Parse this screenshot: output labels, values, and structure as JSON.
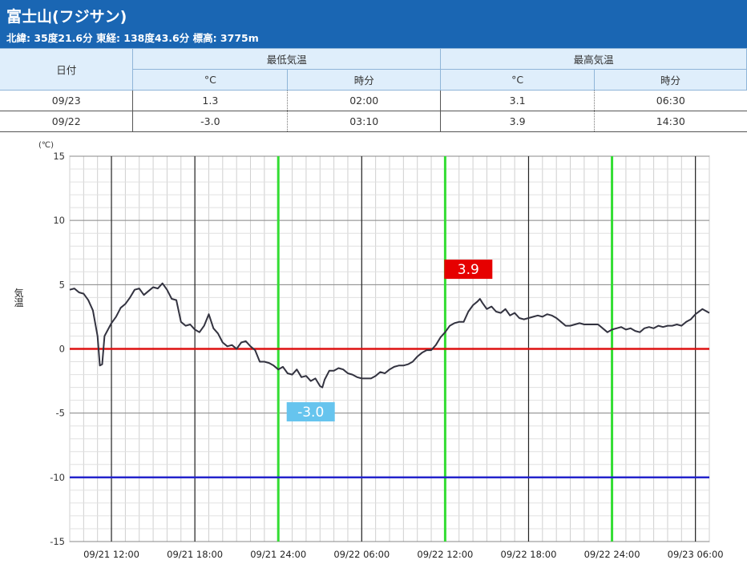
{
  "header": {
    "title": "富士山(フジサン)",
    "subtitle": "北緯: 35度21.6分 東経: 138度43.6分 標高: 3775m",
    "color": "#1a66b3"
  },
  "table": {
    "col_date": "日付",
    "group_min": "最低気温",
    "group_max": "最高気温",
    "unit_c": "°C",
    "unit_time": "時分",
    "rows": [
      {
        "date": "09/23",
        "min": "1.3",
        "min_time": "02:00",
        "max": "3.1",
        "max_time": "06:30"
      },
      {
        "date": "09/22",
        "min": "-3.0",
        "min_time": "03:10",
        "max": "3.9",
        "max_time": "14:30"
      }
    ]
  },
  "chart_data": {
    "type": "line",
    "ylabel": "気温",
    "yunit": "(℃)",
    "ylim": [
      -15,
      15
    ],
    "yticks": [
      15,
      10,
      5,
      0,
      -5,
      -10,
      -15
    ],
    "x_range": [
      "2025-09-21 09:00",
      "2025-09-23 07:00"
    ],
    "x_ticks": [
      "09/21 12:00",
      "09/21 18:00",
      "09/21 24:00",
      "09/22 06:00",
      "09/22 12:00",
      "09/22 18:00",
      "09/22 24:00",
      "09/23 06:00"
    ],
    "grid": true,
    "reference_lines": [
      {
        "y": 0,
        "color": "#dd1111"
      },
      {
        "y": -10,
        "color": "#2222cc"
      }
    ],
    "day_markers": [
      "09/21 24:00",
      "09/22 12:00",
      "09/22 24:00"
    ],
    "day_marker_color": "#33dd33",
    "annotations": [
      {
        "text": "3.9",
        "x": "09/22 13:40",
        "y": 6.2,
        "bg": "#e60000",
        "color": "#ffffff"
      },
      {
        "text": "-3.0",
        "x": "09/22 02:20",
        "y": -4.9,
        "bg": "#66c4ee",
        "color": "#ffffff"
      }
    ],
    "series": [
      {
        "color": "#333340",
        "points": [
          [
            "09/21 09:00",
            4.6
          ],
          [
            "09/21 09:20",
            4.7
          ],
          [
            "09/21 09:40",
            4.4
          ],
          [
            "09/21 10:00",
            4.3
          ],
          [
            "09/21 10:20",
            3.8
          ],
          [
            "09/21 10:40",
            3.0
          ],
          [
            "09/21 11:00",
            1.0
          ],
          [
            "09/21 11:10",
            -1.3
          ],
          [
            "09/21 11:20",
            -1.2
          ],
          [
            "09/21 11:30",
            1.0
          ],
          [
            "09/21 12:00",
            2.0
          ],
          [
            "09/21 12:20",
            2.5
          ],
          [
            "09/21 12:40",
            3.2
          ],
          [
            "09/21 13:00",
            3.5
          ],
          [
            "09/21 13:20",
            4.0
          ],
          [
            "09/21 13:40",
            4.6
          ],
          [
            "09/21 14:00",
            4.7
          ],
          [
            "09/21 14:20",
            4.2
          ],
          [
            "09/21 14:40",
            4.5
          ],
          [
            "09/21 15:00",
            4.8
          ],
          [
            "09/21 15:20",
            4.7
          ],
          [
            "09/21 15:40",
            5.1
          ],
          [
            "09/21 16:00",
            4.6
          ],
          [
            "09/21 16:20",
            3.9
          ],
          [
            "09/21 16:40",
            3.8
          ],
          [
            "09/21 17:00",
            2.1
          ],
          [
            "09/21 17:20",
            1.8
          ],
          [
            "09/21 17:40",
            1.9
          ],
          [
            "09/21 18:00",
            1.5
          ],
          [
            "09/21 18:20",
            1.3
          ],
          [
            "09/21 18:40",
            1.8
          ],
          [
            "09/21 19:00",
            2.7
          ],
          [
            "09/21 19:20",
            1.6
          ],
          [
            "09/21 19:40",
            1.2
          ],
          [
            "09/21 20:00",
            0.5
          ],
          [
            "09/21 20:20",
            0.2
          ],
          [
            "09/21 20:40",
            0.3
          ],
          [
            "09/21 21:00",
            0.0
          ],
          [
            "09/21 21:20",
            0.5
          ],
          [
            "09/21 21:40",
            0.6
          ],
          [
            "09/21 22:00",
            0.2
          ],
          [
            "09/21 22:20",
            -0.1
          ],
          [
            "09/21 22:40",
            -1.0
          ],
          [
            "09/21 23:00",
            -1.0
          ],
          [
            "09/21 23:20",
            -1.1
          ],
          [
            "09/21 23:40",
            -1.3
          ],
          [
            "09/22 00:00",
            -1.6
          ],
          [
            "09/22 00:20",
            -1.4
          ],
          [
            "09/22 00:40",
            -1.9
          ],
          [
            "09/22 01:00",
            -2.0
          ],
          [
            "09/22 01:20",
            -1.6
          ],
          [
            "09/22 01:40",
            -2.2
          ],
          [
            "09/22 02:00",
            -2.1
          ],
          [
            "09/22 02:20",
            -2.5
          ],
          [
            "09/22 02:40",
            -2.3
          ],
          [
            "09/22 03:00",
            -2.9
          ],
          [
            "09/22 03:10",
            -3.0
          ],
          [
            "09/22 03:20",
            -2.4
          ],
          [
            "09/22 03:40",
            -1.7
          ],
          [
            "09/22 04:00",
            -1.7
          ],
          [
            "09/22 04:20",
            -1.5
          ],
          [
            "09/22 04:40",
            -1.6
          ],
          [
            "09/22 05:00",
            -1.9
          ],
          [
            "09/22 05:20",
            -2.0
          ],
          [
            "09/22 05:40",
            -2.2
          ],
          [
            "09/22 06:00",
            -2.3
          ],
          [
            "09/22 06:20",
            -2.3
          ],
          [
            "09/22 06:40",
            -2.3
          ],
          [
            "09/22 07:00",
            -2.1
          ],
          [
            "09/22 07:20",
            -1.8
          ],
          [
            "09/22 07:40",
            -1.9
          ],
          [
            "09/22 08:00",
            -1.6
          ],
          [
            "09/22 08:20",
            -1.4
          ],
          [
            "09/22 08:40",
            -1.3
          ],
          [
            "09/22 09:00",
            -1.3
          ],
          [
            "09/22 09:20",
            -1.2
          ],
          [
            "09/22 09:40",
            -1.0
          ],
          [
            "09/22 10:00",
            -0.6
          ],
          [
            "09/22 10:20",
            -0.3
          ],
          [
            "09/22 10:40",
            -0.1
          ],
          [
            "09/22 11:00",
            -0.1
          ],
          [
            "09/22 11:20",
            0.3
          ],
          [
            "09/22 11:40",
            0.9
          ],
          [
            "09/22 12:00",
            1.3
          ],
          [
            "09/22 12:20",
            1.8
          ],
          [
            "09/22 12:40",
            2.0
          ],
          [
            "09/22 13:00",
            2.1
          ],
          [
            "09/22 13:20",
            2.1
          ],
          [
            "09/22 13:40",
            2.9
          ],
          [
            "09/22 14:00",
            3.4
          ],
          [
            "09/22 14:20",
            3.7
          ],
          [
            "09/22 14:30",
            3.9
          ],
          [
            "09/22 14:40",
            3.6
          ],
          [
            "09/22 15:00",
            3.1
          ],
          [
            "09/22 15:20",
            3.3
          ],
          [
            "09/22 15:40",
            2.9
          ],
          [
            "09/22 16:00",
            2.8
          ],
          [
            "09/22 16:20",
            3.1
          ],
          [
            "09/22 16:40",
            2.6
          ],
          [
            "09/22 17:00",
            2.8
          ],
          [
            "09/22 17:20",
            2.4
          ],
          [
            "09/22 17:40",
            2.3
          ],
          [
            "09/22 18:00",
            2.4
          ],
          [
            "09/22 18:20",
            2.5
          ],
          [
            "09/22 18:40",
            2.6
          ],
          [
            "09/22 19:00",
            2.5
          ],
          [
            "09/22 19:20",
            2.7
          ],
          [
            "09/22 19:40",
            2.6
          ],
          [
            "09/22 20:00",
            2.4
          ],
          [
            "09/22 20:20",
            2.1
          ],
          [
            "09/22 20:40",
            1.8
          ],
          [
            "09/22 21:00",
            1.8
          ],
          [
            "09/22 21:20",
            1.9
          ],
          [
            "09/22 21:40",
            2.0
          ],
          [
            "09/22 22:00",
            1.9
          ],
          [
            "09/22 22:20",
            1.9
          ],
          [
            "09/22 22:40",
            1.9
          ],
          [
            "09/22 23:00",
            1.9
          ],
          [
            "09/22 23:20",
            1.6
          ],
          [
            "09/22 23:40",
            1.3
          ],
          [
            "09/23 00:00",
            1.5
          ],
          [
            "09/23 00:20",
            1.6
          ],
          [
            "09/23 00:40",
            1.7
          ],
          [
            "09/23 01:00",
            1.5
          ],
          [
            "09/23 01:20",
            1.6
          ],
          [
            "09/23 01:40",
            1.4
          ],
          [
            "09/23 02:00",
            1.3
          ],
          [
            "09/23 02:20",
            1.6
          ],
          [
            "09/23 02:40",
            1.7
          ],
          [
            "09/23 03:00",
            1.6
          ],
          [
            "09/23 03:20",
            1.8
          ],
          [
            "09/23 03:40",
            1.7
          ],
          [
            "09/23 04:00",
            1.8
          ],
          [
            "09/23 04:20",
            1.8
          ],
          [
            "09/23 04:40",
            1.9
          ],
          [
            "09/23 05:00",
            1.8
          ],
          [
            "09/23 05:20",
            2.1
          ],
          [
            "09/23 05:40",
            2.3
          ],
          [
            "09/23 06:00",
            2.7
          ],
          [
            "09/23 06:30",
            3.1
          ],
          [
            "09/23 07:00",
            2.8
          ]
        ]
      }
    ]
  }
}
